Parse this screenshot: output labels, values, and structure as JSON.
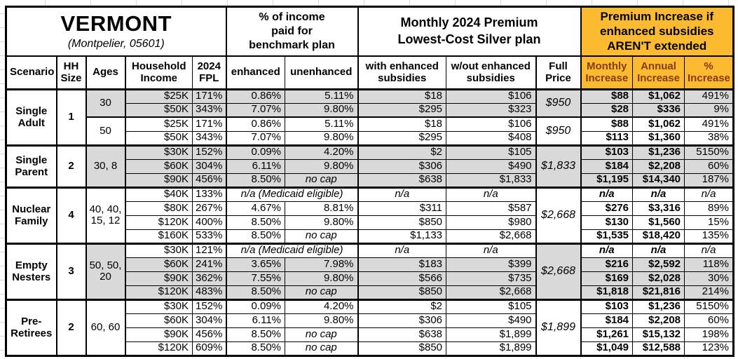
{
  "colors": {
    "accent_orange": "#fbba30",
    "shade_gray": "#d9d9d9",
    "orange_header_text": "#843c0c",
    "border_black": "#000000"
  },
  "chart_data": {
    "type": "table",
    "title": "VERMONT",
    "subtitle": "(Montpelier, 05601)",
    "column_groups": [
      {
        "label": "",
        "columns": [
          "Scenario",
          "HH Size",
          "Ages",
          "Household Income",
          "2024 FPL"
        ]
      },
      {
        "label": "% of income paid for benchmark plan",
        "columns": [
          "enhanced",
          "unenhanced"
        ]
      },
      {
        "label": "Monthly 2024 Premium Lowest-Cost Silver plan",
        "columns": [
          "with enhanced subsidies",
          "w/out enhanced subsidies",
          "Full Price"
        ]
      },
      {
        "label": "Premium Increase if enhanced subsidies AREN'T extended",
        "columns": [
          "Monthly Increase",
          "Annual Increase",
          "% Increase"
        ]
      }
    ],
    "groups": [
      {
        "scenario": "Single Adult",
        "hh_size": "1",
        "subgroups": [
          {
            "ages": "30",
            "full_price": "$950",
            "shaded": true,
            "rows": [
              {
                "income": "$25K",
                "fpl": "171%",
                "enhanced": "0.86%",
                "unenhanced": "5.11%",
                "with_sub": "$18",
                "wout_sub": "$106",
                "monthly": "$88",
                "annual": "$1,062",
                "pct": "491%"
              },
              {
                "income": "$50K",
                "fpl": "343%",
                "enhanced": "7.07%",
                "unenhanced": "9.80%",
                "with_sub": "$295",
                "wout_sub": "$323",
                "monthly": "$28",
                "annual": "$336",
                "pct": "9%"
              }
            ]
          },
          {
            "ages": "50",
            "full_price": "$950",
            "shaded": false,
            "rows": [
              {
                "income": "$25K",
                "fpl": "171%",
                "enhanced": "0.86%",
                "unenhanced": "5.11%",
                "with_sub": "$18",
                "wout_sub": "$106",
                "monthly": "$88",
                "annual": "$1,062",
                "pct": "491%"
              },
              {
                "income": "$50K",
                "fpl": "343%",
                "enhanced": "7.07%",
                "unenhanced": "9.80%",
                "with_sub": "$295",
                "wout_sub": "$408",
                "monthly": "$113",
                "annual": "$1,360",
                "pct": "38%"
              }
            ]
          }
        ]
      },
      {
        "scenario": "Single Parent",
        "hh_size": "2",
        "subgroups": [
          {
            "ages": "30, 8",
            "full_price": "$1,833",
            "shaded": true,
            "rows": [
              {
                "income": "$30K",
                "fpl": "152%",
                "enhanced": "0.09%",
                "unenhanced": "4.20%",
                "with_sub": "$2",
                "wout_sub": "$105",
                "monthly": "$103",
                "annual": "$1,236",
                "pct": "5150%"
              },
              {
                "income": "$60K",
                "fpl": "304%",
                "enhanced": "6.11%",
                "unenhanced": "9.80%",
                "with_sub": "$306",
                "wout_sub": "$490",
                "monthly": "$184",
                "annual": "$2,208",
                "pct": "60%"
              },
              {
                "income": "$90K",
                "fpl": "456%",
                "enhanced": "8.50%",
                "unenhanced": "no cap",
                "with_sub": "$638",
                "wout_sub": "$1,833",
                "monthly": "$1,195",
                "annual": "$14,340",
                "pct": "187%"
              }
            ]
          }
        ]
      },
      {
        "scenario": "Nuclear Family",
        "hh_size": "4",
        "subgroups": [
          {
            "ages": "40, 40, 15, 12",
            "full_price": "$2,668",
            "shaded": false,
            "rows": [
              {
                "income": "$40K",
                "fpl": "133%",
                "medicaid": true,
                "medicaid_label": "n/a (Medicaid eligible)",
                "with_sub": "n/a",
                "wout_sub": "n/a",
                "monthly": "n/a",
                "annual": "n/a",
                "pct": "n/a"
              },
              {
                "income": "$80K",
                "fpl": "267%",
                "enhanced": "4.67%",
                "unenhanced": "8.81%",
                "with_sub": "$311",
                "wout_sub": "$587",
                "monthly": "$276",
                "annual": "$3,316",
                "pct": "89%"
              },
              {
                "income": "$120K",
                "fpl": "400%",
                "enhanced": "8.50%",
                "unenhanced": "9.80%",
                "with_sub": "$850",
                "wout_sub": "$980",
                "monthly": "$130",
                "annual": "$1,560",
                "pct": "15%"
              },
              {
                "income": "$160K",
                "fpl": "533%",
                "enhanced": "8.50%",
                "unenhanced": "no cap",
                "with_sub": "$1,133",
                "wout_sub": "$2,668",
                "monthly": "$1,535",
                "annual": "$18,420",
                "pct": "135%"
              }
            ]
          }
        ]
      },
      {
        "scenario": "Empty Nesters",
        "hh_size": "3",
        "subgroups": [
          {
            "ages": "50, 50, 20",
            "full_price": "$2,668",
            "shaded": true,
            "rows": [
              {
                "income": "$30K",
                "fpl": "121%",
                "medicaid": true,
                "medicaid_label": "n/a (Medicaid eligible)",
                "with_sub": "n/a",
                "wout_sub": "n/a",
                "monthly": "n/a",
                "annual": "n/a",
                "pct": "n/a",
                "shaded": false
              },
              {
                "income": "$60K",
                "fpl": "241%",
                "enhanced": "3.65%",
                "unenhanced": "7.98%",
                "with_sub": "$183",
                "wout_sub": "$399",
                "monthly": "$216",
                "annual": "$2,592",
                "pct": "118%"
              },
              {
                "income": "$90K",
                "fpl": "362%",
                "enhanced": "7.55%",
                "unenhanced": "9.80%",
                "with_sub": "$566",
                "wout_sub": "$735",
                "monthly": "$169",
                "annual": "$2,028",
                "pct": "30%"
              },
              {
                "income": "$120K",
                "fpl": "483%",
                "enhanced": "8.50%",
                "unenhanced": "no cap",
                "with_sub": "$850",
                "wout_sub": "$2,668",
                "monthly": "$1,818",
                "annual": "$21,816",
                "pct": "214%"
              }
            ]
          }
        ]
      },
      {
        "scenario": "Pre-Retirees",
        "hh_size": "2",
        "subgroups": [
          {
            "ages": "60, 60",
            "full_price": "$1,899",
            "shaded": false,
            "rows": [
              {
                "income": "$30K",
                "fpl": "152%",
                "enhanced": "0.09%",
                "unenhanced": "4.20%",
                "with_sub": "$2",
                "wout_sub": "$105",
                "monthly": "$103",
                "annual": "$1,236",
                "pct": "5150%"
              },
              {
                "income": "$60K",
                "fpl": "304%",
                "enhanced": "6.11%",
                "unenhanced": "9.80%",
                "with_sub": "$306",
                "wout_sub": "$490",
                "monthly": "$184",
                "annual": "$2,208",
                "pct": "60%"
              },
              {
                "income": "$90K",
                "fpl": "456%",
                "enhanced": "8.50%",
                "unenhanced": "no cap",
                "with_sub": "$638",
                "wout_sub": "$1,899",
                "monthly": "$1,261",
                "annual": "$15,132",
                "pct": "198%"
              },
              {
                "income": "$120K",
                "fpl": "609%",
                "enhanced": "8.50%",
                "unenhanced": "no cap",
                "with_sub": "$850",
                "wout_sub": "$1,899",
                "monthly": "$1,049",
                "annual": "$12,588",
                "pct": "123%"
              }
            ]
          }
        ]
      }
    ]
  }
}
